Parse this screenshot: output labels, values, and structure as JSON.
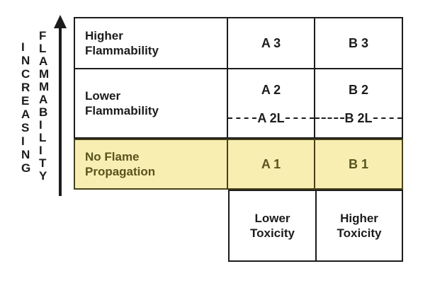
{
  "diagram": {
    "axis": {
      "word_primary": "INCREASING",
      "word_secondary": "FLAMMABILITY",
      "arrow_direction": "up"
    },
    "rows": [
      {
        "label_lines": [
          "Higher",
          "Flammability"
        ],
        "cell_a": "A 3",
        "cell_b": "B 3"
      },
      {
        "label_lines": [
          "Lower",
          "Flammability"
        ],
        "cell_a": "A 2",
        "cell_a_sub": "A 2L",
        "cell_b": "B 2",
        "cell_b_sub": "B 2L"
      },
      {
        "label_lines": [
          "No Flame",
          "Propagation"
        ],
        "cell_a": "A 1",
        "cell_b": "B 1",
        "highlighted": true
      }
    ],
    "footer": {
      "col_a_lines": [
        "Lower",
        "Toxicity"
      ],
      "col_b_lines": [
        "Higher",
        "Toxicity"
      ]
    },
    "colors": {
      "ink": "#1c1c1c",
      "highlight_bg": "#f8eeb2",
      "highlight_text": "#59531e",
      "highlight_border": "#46411a"
    }
  }
}
